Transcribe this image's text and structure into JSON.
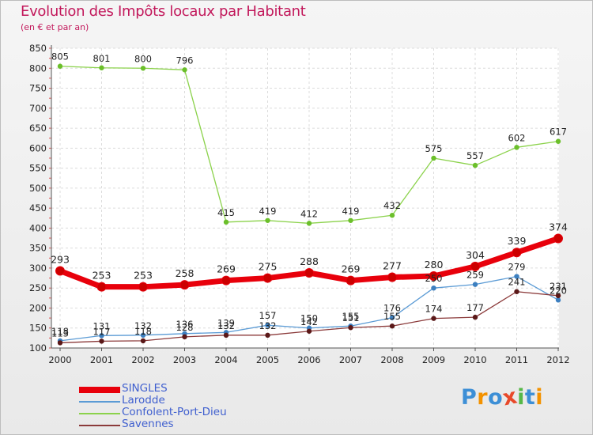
{
  "title": "Evolution des Impôts locaux par Habitant",
  "subtitle": "(en € et par an)",
  "logo": {
    "text": "Proxiti",
    "letters": [
      "P",
      "r",
      "o",
      "x",
      "i",
      "t",
      "i"
    ],
    "colors": [
      "#3d8fd6",
      "#f39200",
      "#3d8fd6",
      "#e8492a",
      "#56b848",
      "#3d8fd6",
      "#f39200"
    ]
  },
  "chart_data": {
    "type": "line",
    "title": "Evolution des Impôts locaux par Habitant",
    "subtitle": "(en € et par an)",
    "xlabel": "",
    "ylabel": "",
    "categories": [
      "2000",
      "2001",
      "2002",
      "2003",
      "2004",
      "2005",
      "2006",
      "2007",
      "2008",
      "2009",
      "2010",
      "2011",
      "2012"
    ],
    "ylim": [
      100,
      850
    ],
    "yticks": [
      100,
      150,
      200,
      250,
      300,
      350,
      400,
      450,
      500,
      550,
      600,
      650,
      700,
      750,
      800,
      850
    ],
    "grid": true,
    "legend_position": "bottom-left",
    "series": [
      {
        "name": "SINGLES",
        "color": "#e8000b",
        "values": [
          293,
          253,
          253,
          258,
          269,
          275,
          288,
          269,
          277,
          280,
          304,
          339,
          374
        ]
      },
      {
        "name": "Larodde",
        "color": "#5b9bd5",
        "values": [
          118,
          131,
          132,
          136,
          139,
          157,
          150,
          155,
          176,
          250,
          259,
          279,
          220
        ]
      },
      {
        "name": "Confolent-Port-Dieu",
        "color": "#8bd24b",
        "values": [
          805,
          801,
          800,
          796,
          415,
          419,
          412,
          419,
          432,
          575,
          557,
          602,
          617
        ]
      },
      {
        "name": "Savennes",
        "color": "#8b3a3a",
        "values": [
          113,
          117,
          118,
          128,
          132,
          132,
          142,
          151,
          155,
          174,
          177,
          241,
          231
        ]
      }
    ]
  }
}
